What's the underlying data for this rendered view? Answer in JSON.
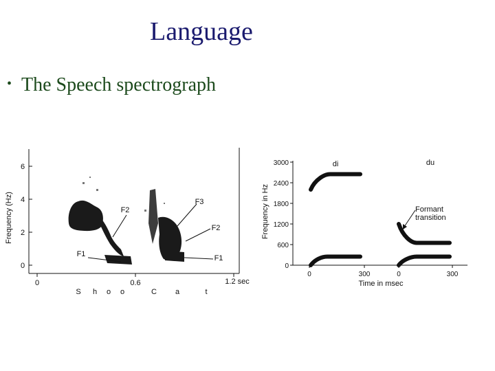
{
  "slide": {
    "title": "Language",
    "bullet": "The Speech spectrograph"
  },
  "colors": {
    "title": "#1a1a6e",
    "bullet": "#1c4a1c",
    "ink": "#111111"
  },
  "spectrogram": {
    "ylabel": "Frequency (Hz)",
    "yticks": [
      "0",
      "2",
      "4",
      "6"
    ],
    "xticks": [
      "0",
      "0.6",
      "1.2 sec"
    ],
    "phonemes": [
      "S",
      "h",
      "o",
      "o",
      "C",
      "a",
      "t"
    ],
    "labels": {
      "f2_shoo": "F2",
      "f1_shoo": "F1",
      "f3_cat": "F3",
      "f2_cat": "F2",
      "f1_cat": "F1"
    }
  },
  "formant_chart": {
    "ylabel": "Frequency in Hz",
    "xlabel": "Time in msec",
    "yticks": [
      "0",
      "600",
      "1200",
      "1800",
      "2400",
      "3000"
    ],
    "xticks": [
      "0",
      "300",
      "0",
      "300"
    ],
    "syllables": [
      "di",
      "du"
    ],
    "annotation_line1": "Formant",
    "annotation_line2": "transition",
    "di": {
      "f1_start_hz": 0,
      "f1_steady_hz": 250,
      "f2_start_hz": 2200,
      "f2_steady_hz": 2650
    },
    "du": {
      "f1_start_hz": 0,
      "f1_steady_hz": 250,
      "f2_start_hz": 1200,
      "f2_steady_hz": 650
    }
  }
}
